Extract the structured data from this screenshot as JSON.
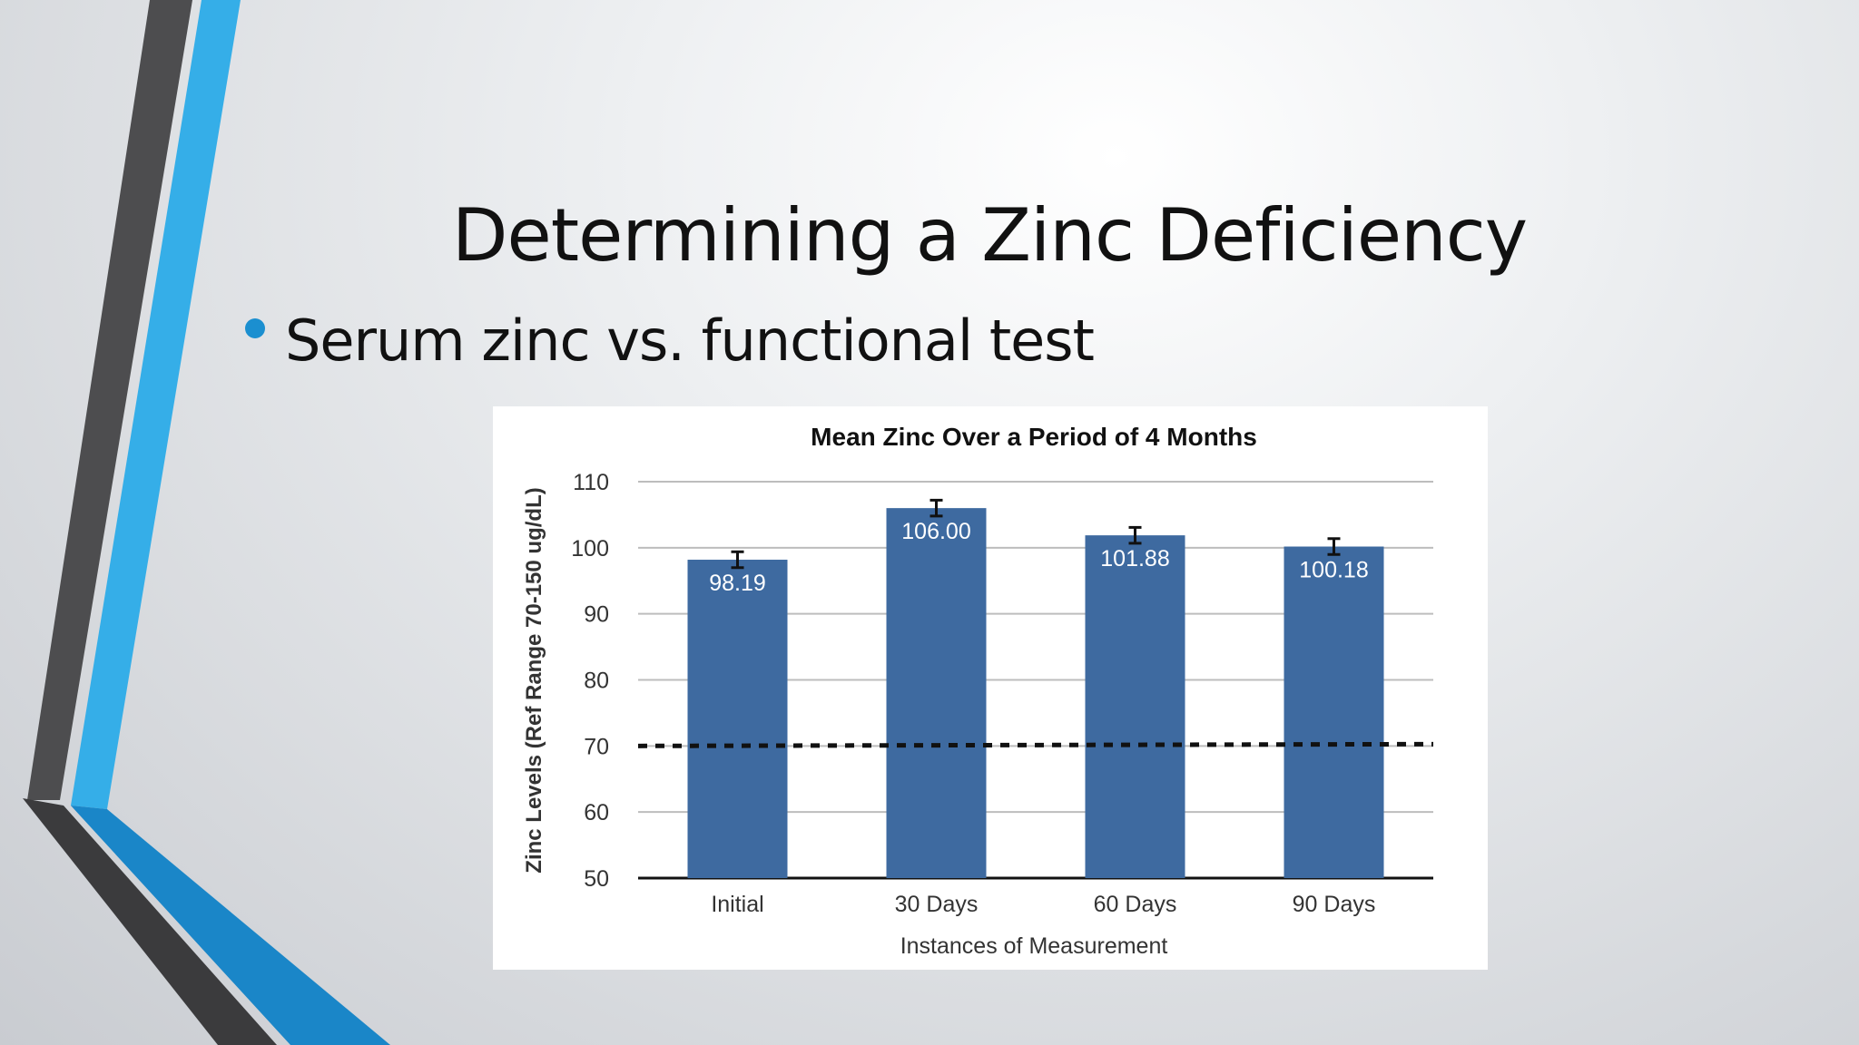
{
  "slide": {
    "title": "Determining a Zinc Deficiency",
    "bullets": [
      "Serum zinc vs. functional test"
    ]
  },
  "colors": {
    "bar": "#3e6aa0",
    "accent_blue": "#1b8fd0",
    "accent_dark": "#4a4a4a"
  },
  "chart_data": {
    "type": "bar",
    "title": "Mean Zinc Over a Period of 4 Months",
    "xlabel": "Instances of Measurement",
    "ylabel": "Zinc Levels (Ref Range 70-150 ug/dL)",
    "categories": [
      "Initial",
      "30 Days",
      "60 Days",
      "90 Days"
    ],
    "values": [
      98.19,
      106.0,
      101.88,
      100.18
    ],
    "data_labels": [
      "98.19",
      "106.00",
      "101.88",
      "100.18"
    ],
    "error_bars": [
      1.2,
      1.2,
      1.2,
      1.2
    ],
    "reference_line": {
      "value": 70,
      "style": "dashed"
    },
    "yticks": [
      50,
      60,
      70,
      80,
      90,
      100,
      110
    ],
    "ylim": [
      50,
      110
    ],
    "grid": true,
    "legend": "none"
  }
}
